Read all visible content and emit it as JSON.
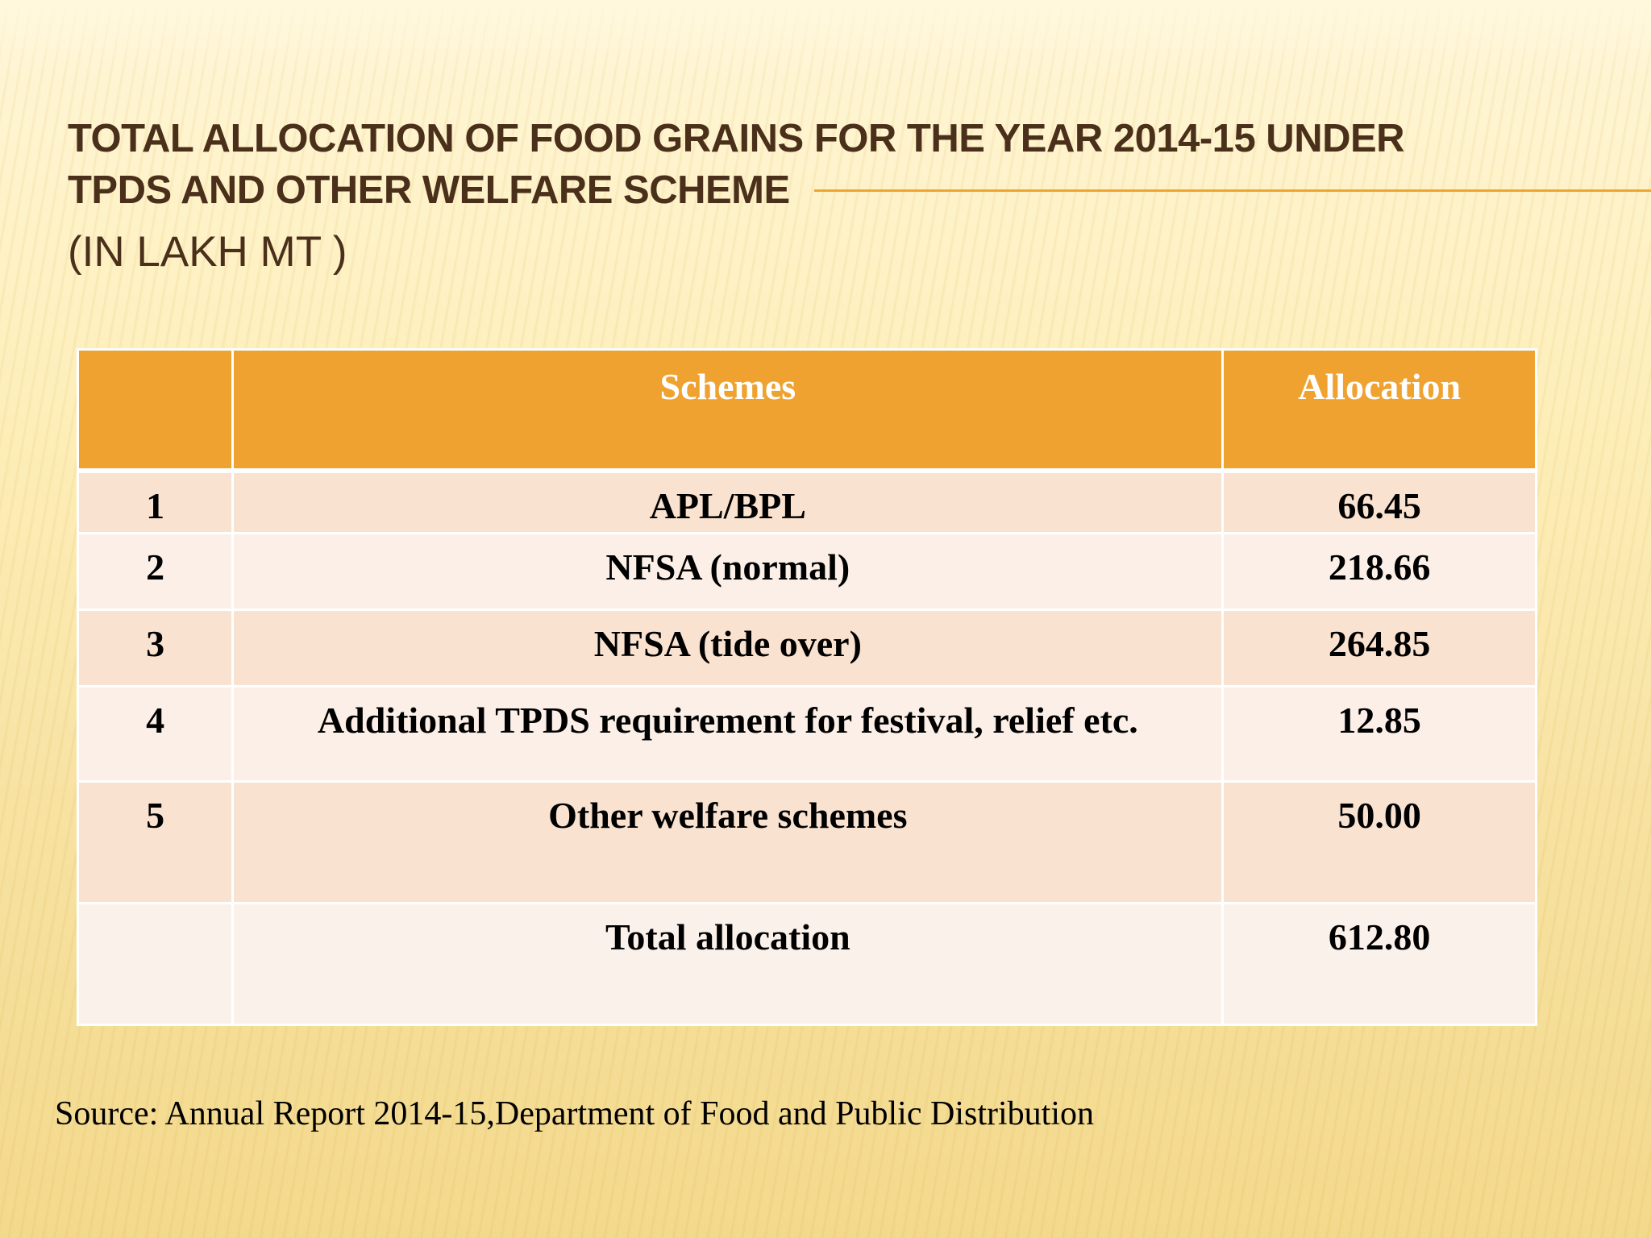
{
  "slide": {
    "title_lines": [
      "TOTAL ALLOCATION OF FOOD GRAINS FOR THE YEAR 2014-15 UNDER",
      "TPDS AND OTHER  WELFARE SCHEME"
    ],
    "subtitle": "(IN LAKH MT )",
    "accent_color": "#f0a531"
  },
  "table": {
    "header": {
      "number": "",
      "scheme": "Schemes",
      "allocation": "Allocation"
    },
    "header_color": "#efa22f",
    "rows": [
      {
        "number": "1",
        "scheme": "APL/BPL",
        "allocation": "66.45"
      },
      {
        "number": "2",
        "scheme": "NFSA (normal)",
        "allocation": "218.66"
      },
      {
        "number": "3",
        "scheme": "NFSA (tide over)",
        "allocation": "264.85"
      },
      {
        "number": "4",
        "scheme": "Additional TPDS requirement for festival, relief etc.",
        "allocation": "12.85"
      },
      {
        "number": "5",
        "scheme": "Other welfare schemes",
        "allocation": "50.00"
      }
    ],
    "total": {
      "number": "",
      "scheme": "Total allocation",
      "allocation": "612.80"
    }
  },
  "source": "Source:  Annual Report 2014-15,Department of Food and Public Distribution"
}
